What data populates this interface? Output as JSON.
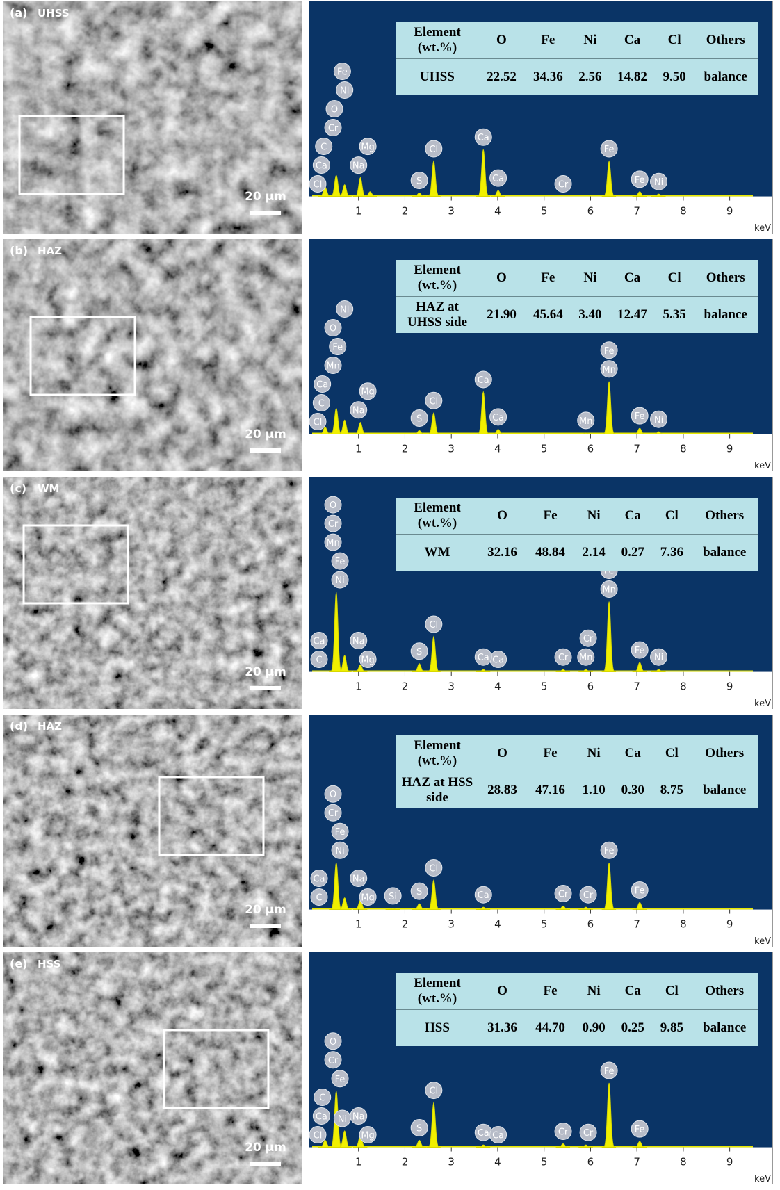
{
  "panels": [
    {
      "tag": "(a)",
      "name": "UHSS",
      "scale_bar": "20 μm",
      "table": {
        "header": [
          "Element (wt.%)",
          "O",
          "Fe",
          "Ni",
          "Ca",
          "Cl",
          "Others"
        ],
        "row": [
          "UHSS",
          "22.52",
          "34.36",
          "2.56",
          "14.82",
          "9.50",
          "balance"
        ]
      },
      "spectrum": {
        "xlim": [
          0,
          9.5
        ],
        "xticks": [
          1,
          2,
          3,
          4,
          5,
          6,
          7,
          8,
          9
        ],
        "unit": "keV",
        "ylim": [
          0,
          100
        ],
        "peaks": [
          {
            "energy": 0.28,
            "height": 8
          },
          {
            "energy": 0.52,
            "height": 18
          },
          {
            "energy": 0.7,
            "height": 10
          },
          {
            "energy": 1.04,
            "height": 16
          },
          {
            "energy": 1.25,
            "height": 4
          },
          {
            "energy": 2.31,
            "height": 3
          },
          {
            "energy": 2.62,
            "height": 30
          },
          {
            "energy": 3.69,
            "height": 40
          },
          {
            "energy": 4.01,
            "height": 5
          },
          {
            "energy": 6.4,
            "height": 30
          },
          {
            "energy": 7.06,
            "height": 4
          },
          {
            "energy": 7.47,
            "height": 2
          }
        ],
        "labels": [
          {
            "text": "Cl",
            "energy": 0.12
          },
          {
            "text": "Ca",
            "energy": 0.2
          },
          {
            "text": "C",
            "energy": 0.25
          },
          {
            "text": "Cr",
            "energy": 0.45
          },
          {
            "text": "O",
            "energy": 0.48
          },
          {
            "text": "Ni",
            "energy": 0.7
          },
          {
            "text": "Fe",
            "energy": 0.65
          },
          {
            "text": "Na",
            "energy": 1.0
          },
          {
            "text": "Mg",
            "energy": 1.2
          },
          {
            "text": "S",
            "energy": 2.31
          },
          {
            "text": "Cl",
            "energy": 2.62
          },
          {
            "text": "Ca",
            "energy": 3.69
          },
          {
            "text": "Ca",
            "energy": 4.01
          },
          {
            "text": "Cr",
            "energy": 5.41
          },
          {
            "text": "Fe",
            "energy": 6.4
          },
          {
            "text": "Fe",
            "energy": 7.06
          },
          {
            "text": "Ni",
            "energy": 7.47
          }
        ]
      }
    },
    {
      "tag": "(b)",
      "name": "HAZ",
      "scale_bar": "20 μm",
      "table": {
        "header": [
          "Element (wt.%)",
          "O",
          "Fe",
          "Ni",
          "Ca",
          "Cl",
          "Others"
        ],
        "row": [
          "HAZ at UHSS side",
          "21.90",
          "45.64",
          "3.40",
          "12.47",
          "5.35",
          "balance"
        ]
      },
      "spectrum": {
        "xlim": [
          0,
          9.5
        ],
        "xticks": [
          1,
          2,
          3,
          4,
          5,
          6,
          7,
          8,
          9
        ],
        "unit": "keV",
        "ylim": [
          0,
          100
        ],
        "peaks": [
          {
            "energy": 0.28,
            "height": 6
          },
          {
            "energy": 0.52,
            "height": 22
          },
          {
            "energy": 0.7,
            "height": 12
          },
          {
            "energy": 1.04,
            "height": 10
          },
          {
            "energy": 2.31,
            "height": 3
          },
          {
            "energy": 2.62,
            "height": 18
          },
          {
            "energy": 3.69,
            "height": 36
          },
          {
            "energy": 4.01,
            "height": 4
          },
          {
            "energy": 5.9,
            "height": 1
          },
          {
            "energy": 6.4,
            "height": 45
          },
          {
            "energy": 7.06,
            "height": 5
          },
          {
            "energy": 7.47,
            "height": 2
          }
        ],
        "labels": [
          {
            "text": "Cl",
            "energy": 0.12
          },
          {
            "text": "C",
            "energy": 0.2
          },
          {
            "text": "Ca",
            "energy": 0.22
          },
          {
            "text": "Mn",
            "energy": 0.45
          },
          {
            "text": "Fe",
            "energy": 0.55
          },
          {
            "text": "O",
            "energy": 0.45
          },
          {
            "text": "Ni",
            "energy": 0.7
          },
          {
            "text": "Na",
            "energy": 1.0
          },
          {
            "text": "Mg",
            "energy": 1.2
          },
          {
            "text": "S",
            "energy": 2.31
          },
          {
            "text": "Cl",
            "energy": 2.62
          },
          {
            "text": "Ca",
            "energy": 3.69
          },
          {
            "text": "Ca",
            "energy": 4.01
          },
          {
            "text": "Mn",
            "energy": 5.9
          },
          {
            "text": "Mn",
            "energy": 6.4
          },
          {
            "text": "Fe",
            "energy": 6.4
          },
          {
            "text": "Fe",
            "energy": 7.06
          },
          {
            "text": "Ni",
            "energy": 7.47
          }
        ]
      }
    },
    {
      "tag": "(c)",
      "name": "WM",
      "scale_bar": "20 μm",
      "table": {
        "header": [
          "Element (wt.%)",
          "O",
          "Fe",
          "Ni",
          "Ca",
          "Cl",
          "Others"
        ],
        "row": [
          "WM",
          "32.16",
          "48.84",
          "2.14",
          "0.27",
          "7.36",
          "balance"
        ]
      },
      "spectrum": {
        "xlim": [
          0,
          9.5
        ],
        "xticks": [
          1,
          2,
          3,
          4,
          5,
          6,
          7,
          8,
          9
        ],
        "unit": "keV",
        "ylim": [
          0,
          100
        ],
        "peaks": [
          {
            "energy": 0.52,
            "height": 68
          },
          {
            "energy": 0.7,
            "height": 14
          },
          {
            "energy": 1.04,
            "height": 6
          },
          {
            "energy": 2.31,
            "height": 7
          },
          {
            "energy": 2.62,
            "height": 30
          },
          {
            "energy": 3.69,
            "height": 2
          },
          {
            "energy": 5.41,
            "height": 2
          },
          {
            "energy": 5.9,
            "height": 2
          },
          {
            "energy": 6.4,
            "height": 60
          },
          {
            "energy": 7.06,
            "height": 8
          },
          {
            "energy": 7.47,
            "height": 2
          }
        ],
        "labels": [
          {
            "text": "C",
            "energy": 0.15
          },
          {
            "text": "Ca",
            "energy": 0.15
          },
          {
            "text": "Ni",
            "energy": 0.6
          },
          {
            "text": "Fe",
            "energy": 0.6
          },
          {
            "text": "Mn",
            "energy": 0.45
          },
          {
            "text": "Cr",
            "energy": 0.45
          },
          {
            "text": "O",
            "energy": 0.45
          },
          {
            "text": "Mg",
            "energy": 1.2
          },
          {
            "text": "Na",
            "energy": 1.0
          },
          {
            "text": "S",
            "energy": 2.31
          },
          {
            "text": "Cl",
            "energy": 2.62
          },
          {
            "text": "Ca",
            "energy": 4.01
          },
          {
            "text": "Ca",
            "energy": 3.69
          },
          {
            "text": "Cr",
            "energy": 5.41
          },
          {
            "text": "Mn",
            "energy": 5.9
          },
          {
            "text": "Cr",
            "energy": 5.95
          },
          {
            "text": "Mn",
            "energy": 6.4
          },
          {
            "text": "Fe",
            "energy": 6.4
          },
          {
            "text": "Fe",
            "energy": 7.06
          },
          {
            "text": "Ni",
            "energy": 7.47
          }
        ]
      }
    },
    {
      "tag": "(d)",
      "name": "HAZ",
      "scale_bar": "20 μm",
      "table": {
        "header": [
          "Element (wt.%)",
          "O",
          "Fe",
          "Ni",
          "Ca",
          "Cl",
          "Others"
        ],
        "row": [
          "HAZ at HSS side",
          "28.83",
          "47.16",
          "1.10",
          "0.30",
          "8.75",
          "balance"
        ]
      },
      "spectrum": {
        "xlim": [
          0,
          9.5
        ],
        "xticks": [
          1,
          2,
          3,
          4,
          5,
          6,
          7,
          8,
          9
        ],
        "unit": "keV",
        "ylim": [
          0,
          100
        ],
        "peaks": [
          {
            "energy": 0.52,
            "height": 40
          },
          {
            "energy": 0.7,
            "height": 10
          },
          {
            "energy": 1.04,
            "height": 8
          },
          {
            "energy": 1.74,
            "height": 1
          },
          {
            "energy": 2.31,
            "height": 5
          },
          {
            "energy": 2.62,
            "height": 25
          },
          {
            "energy": 3.69,
            "height": 2
          },
          {
            "energy": 5.41,
            "height": 3
          },
          {
            "energy": 5.9,
            "height": 2
          },
          {
            "energy": 6.4,
            "height": 40
          },
          {
            "energy": 7.06,
            "height": 6
          }
        ],
        "labels": [
          {
            "text": "C",
            "energy": 0.15
          },
          {
            "text": "Ca",
            "energy": 0.15
          },
          {
            "text": "Ni",
            "energy": 0.6
          },
          {
            "text": "Fe",
            "energy": 0.6
          },
          {
            "text": "Cr",
            "energy": 0.45
          },
          {
            "text": "O",
            "energy": 0.45
          },
          {
            "text": "Mg",
            "energy": 1.2
          },
          {
            "text": "Na",
            "energy": 1.0
          },
          {
            "text": "Si",
            "energy": 1.74
          },
          {
            "text": "S",
            "energy": 2.31
          },
          {
            "text": "Cl",
            "energy": 2.62
          },
          {
            "text": "Ca",
            "energy": 3.69
          },
          {
            "text": "Cr",
            "energy": 5.41
          },
          {
            "text": "Cr",
            "energy": 5.95
          },
          {
            "text": "Fe",
            "energy": 6.4
          },
          {
            "text": "Fe",
            "energy": 7.06
          }
        ]
      }
    },
    {
      "tag": "(e)",
      "name": "HSS",
      "scale_bar": "20 μm",
      "table": {
        "header": [
          "Element (wt.%)",
          "O",
          "Fe",
          "Ni",
          "Ca",
          "Cl",
          "Others"
        ],
        "row": [
          "HSS",
          "31.36",
          "44.70",
          "0.90",
          "0.25",
          "9.85",
          "balance"
        ]
      },
      "spectrum": {
        "xlim": [
          0,
          9.5
        ],
        "xticks": [
          1,
          2,
          3,
          4,
          5,
          6,
          7,
          8,
          9
        ],
        "unit": "keV",
        "ylim": [
          0,
          100
        ],
        "peaks": [
          {
            "energy": 0.28,
            "height": 6
          },
          {
            "energy": 0.52,
            "height": 48
          },
          {
            "energy": 0.7,
            "height": 14
          },
          {
            "energy": 1.04,
            "height": 10
          },
          {
            "energy": 2.31,
            "height": 6
          },
          {
            "energy": 2.62,
            "height": 38
          },
          {
            "energy": 3.69,
            "height": 2
          },
          {
            "energy": 5.41,
            "height": 3
          },
          {
            "energy": 5.9,
            "height": 2
          },
          {
            "energy": 6.4,
            "height": 55
          },
          {
            "energy": 7.06,
            "height": 5
          }
        ],
        "labels": [
          {
            "text": "Cl",
            "energy": 0.12
          },
          {
            "text": "Ca",
            "energy": 0.2
          },
          {
            "text": "C",
            "energy": 0.22
          },
          {
            "text": "Ni",
            "energy": 0.65
          },
          {
            "text": "Fe",
            "energy": 0.6
          },
          {
            "text": "Cr",
            "energy": 0.45
          },
          {
            "text": "O",
            "energy": 0.45
          },
          {
            "text": "Mg",
            "energy": 1.2
          },
          {
            "text": "Na",
            "energy": 1.0
          },
          {
            "text": "S",
            "energy": 2.31
          },
          {
            "text": "Cl",
            "energy": 2.62
          },
          {
            "text": "Ca",
            "energy": 3.69
          },
          {
            "text": "Ca",
            "energy": 4.01
          },
          {
            "text": "Cr",
            "energy": 5.41
          },
          {
            "text": "Cr",
            "energy": 5.95
          },
          {
            "text": "Fe",
            "energy": 6.4
          },
          {
            "text": "Fe",
            "energy": 7.06
          }
        ]
      }
    }
  ]
}
